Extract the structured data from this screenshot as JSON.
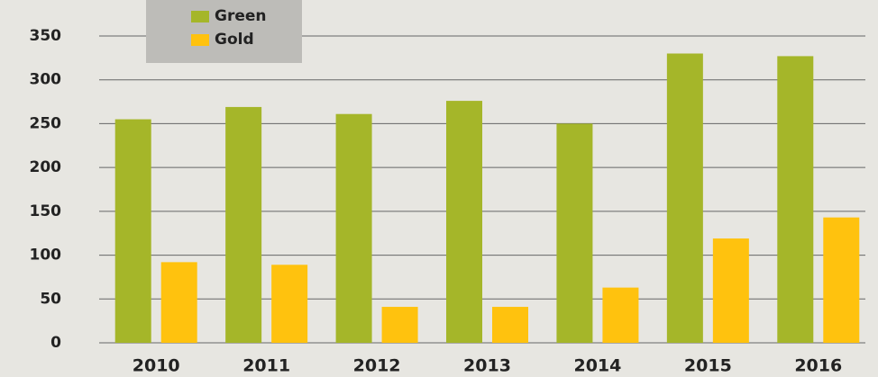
{
  "chart_data": {
    "type": "bar",
    "categories": [
      "2010",
      "2011",
      "2012",
      "2013",
      "2014",
      "2015",
      "2016"
    ],
    "series": [
      {
        "name": "Green",
        "color": "#a5b629",
        "values": [
          255,
          269,
          261,
          276,
          250,
          330,
          327
        ]
      },
      {
        "name": "Gold",
        "color": "#ffc20e",
        "values": [
          92,
          89,
          41,
          41,
          63,
          119,
          143
        ]
      }
    ],
    "ylim": [
      0,
      350
    ],
    "yticks": [
      0,
      50,
      100,
      150,
      200,
      250,
      300,
      350
    ],
    "grid": true,
    "legend": "top-left"
  }
}
